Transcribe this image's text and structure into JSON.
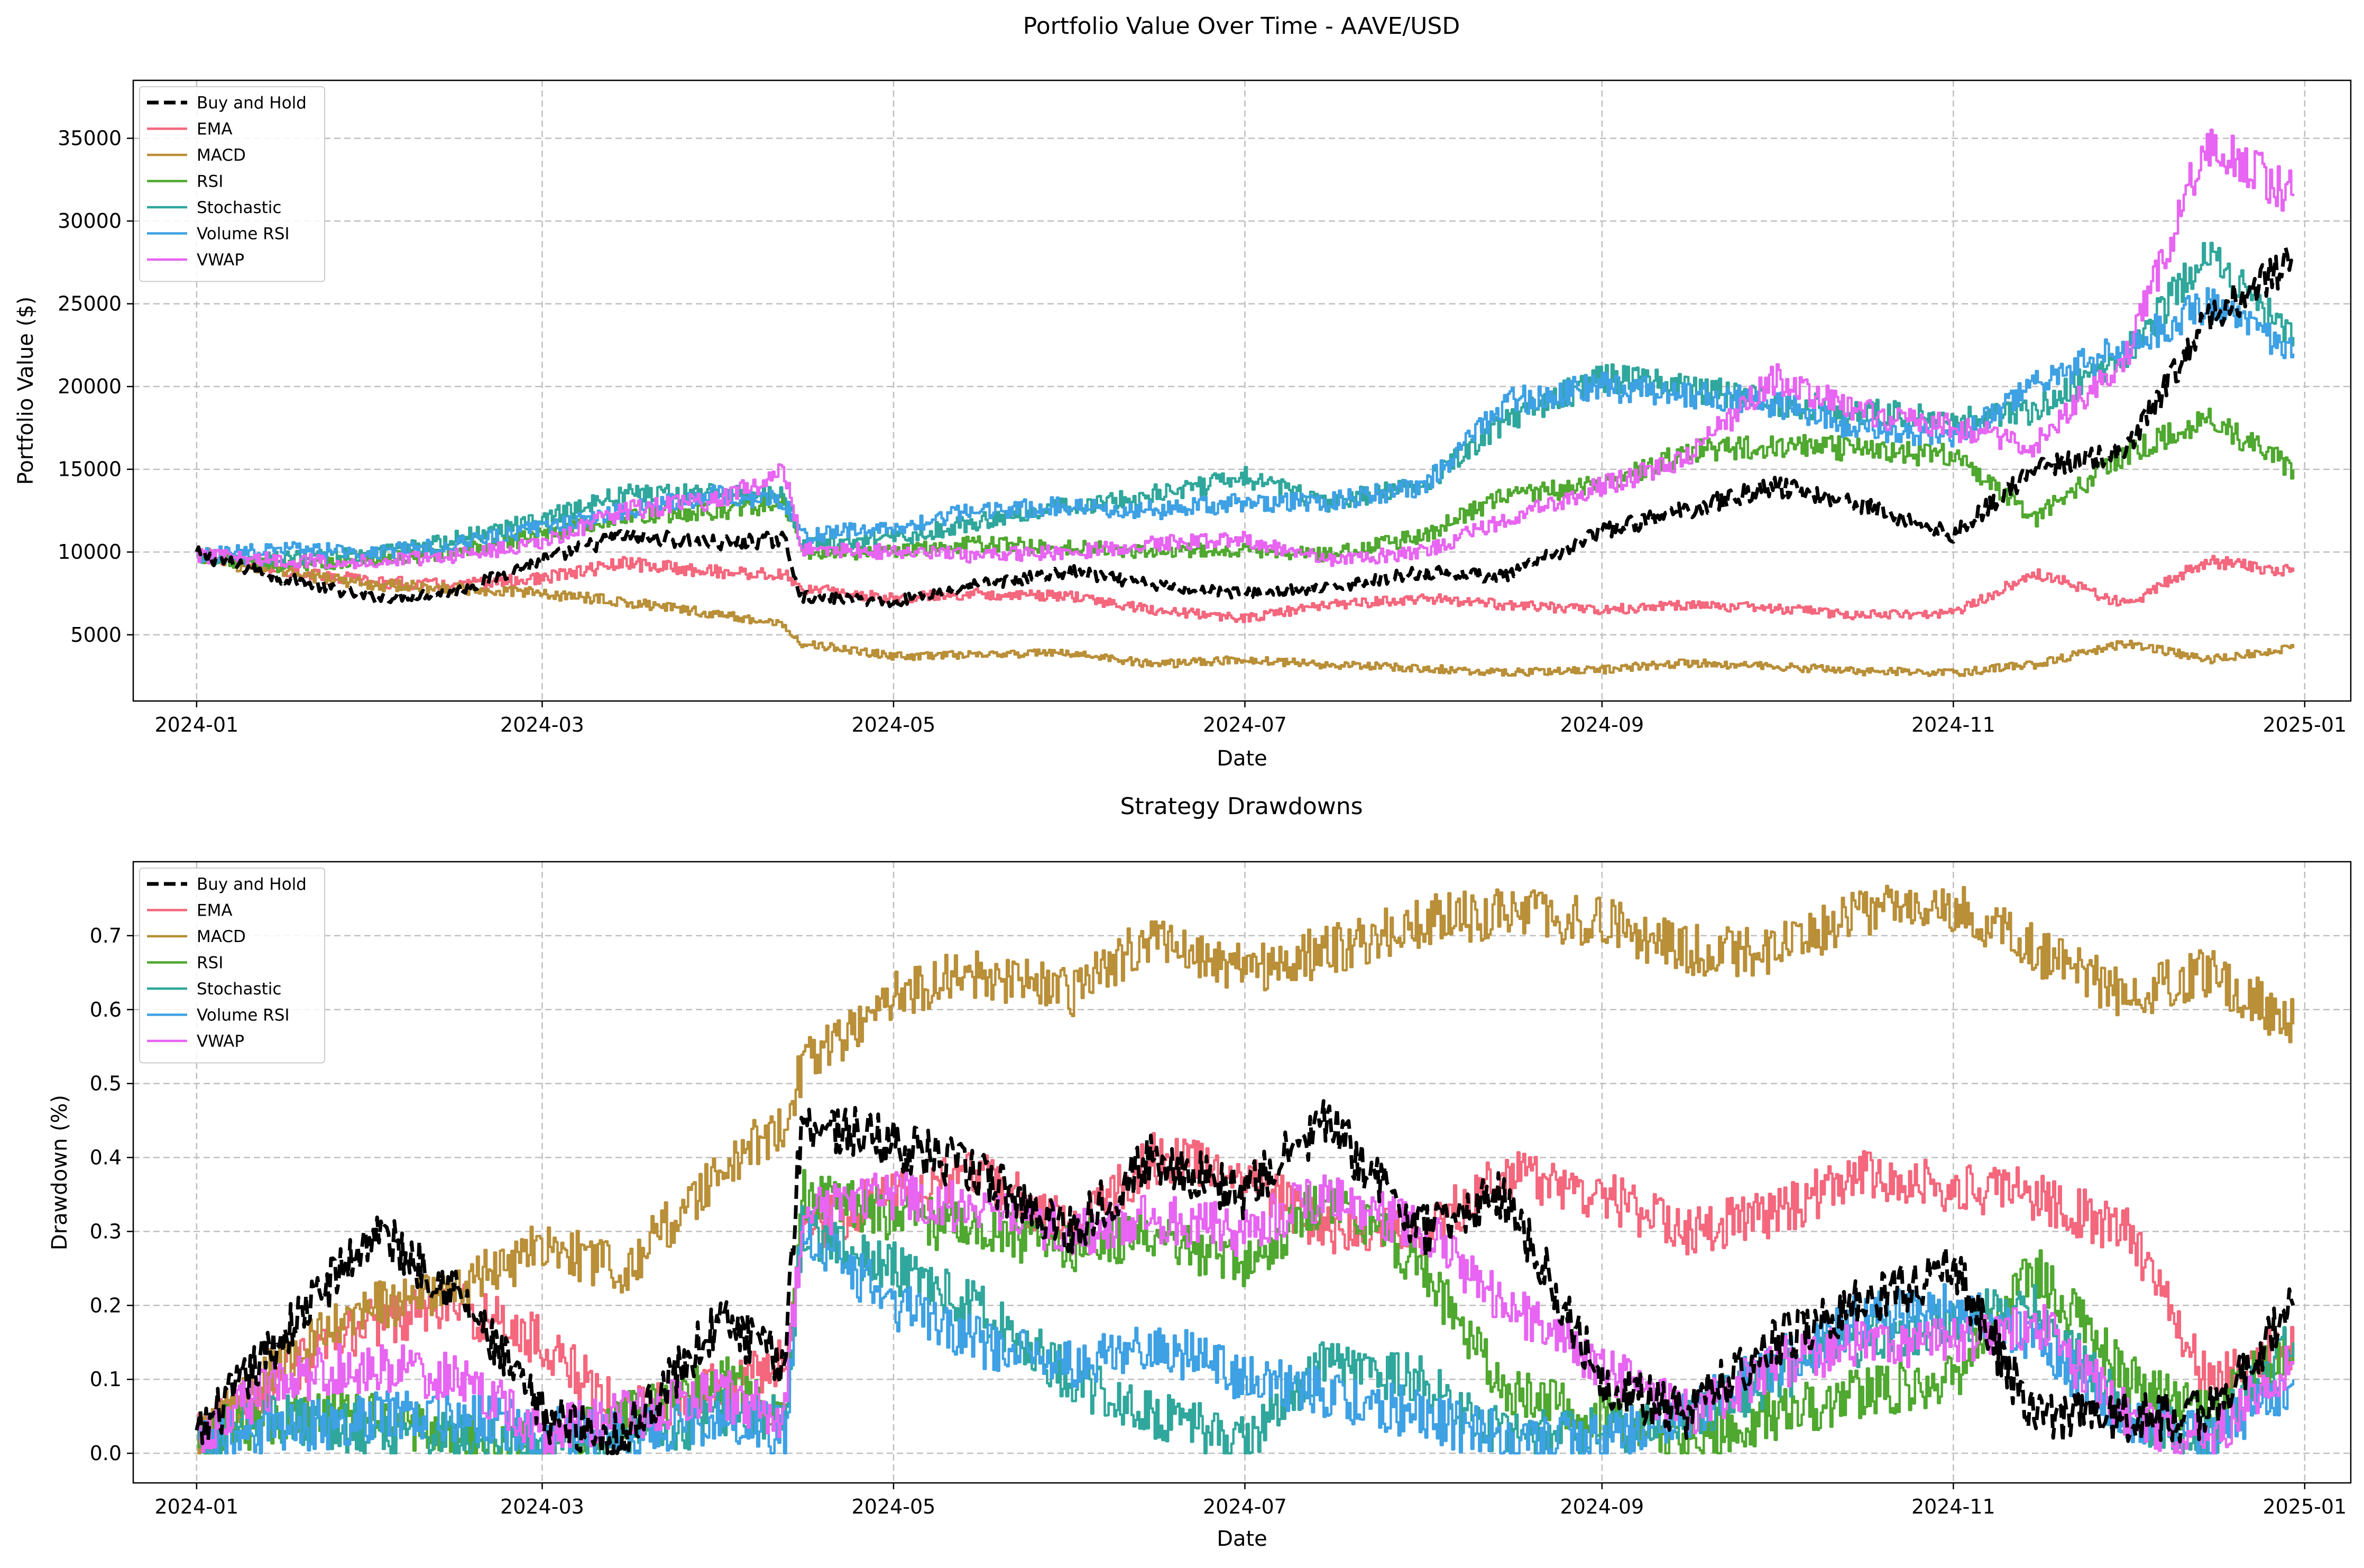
{
  "figure": {
    "colors": {
      "Buy and Hold": "#000000",
      "EMA": "#f4677d",
      "MACD": "#b98f38",
      "RSI": "#4fa82f",
      "Stochastic": "#30a79c",
      "Volume RSI": "#3ea1e4",
      "VWAP": "#e765f2"
    },
    "grid_color": "#bfbfbf"
  },
  "chart_data": [
    {
      "type": "line",
      "title": "Portfolio Value Over Time - AAVE/USD",
      "xlabel": "Date",
      "ylabel": "Portfolio Value ($)",
      "xlim": [
        "2023-12-21",
        "2025-01-09"
      ],
      "ylim": [
        1000,
        38500
      ],
      "x_ticks": [
        "2024-01",
        "2024-03",
        "2024-05",
        "2024-07",
        "2024-09",
        "2024-11",
        "2025-01"
      ],
      "y_ticks": [
        5000,
        10000,
        15000,
        20000,
        25000,
        30000,
        35000
      ],
      "grid": true,
      "legend_position": "upper-left",
      "x": [
        "2024-01-01",
        "2024-01-15",
        "2024-02-01",
        "2024-02-15",
        "2024-03-01",
        "2024-03-15",
        "2024-04-01",
        "2024-04-12",
        "2024-04-15",
        "2024-05-01",
        "2024-05-15",
        "2024-06-01",
        "2024-06-15",
        "2024-07-01",
        "2024-07-15",
        "2024-08-01",
        "2024-08-15",
        "2024-09-01",
        "2024-09-15",
        "2024-10-01",
        "2024-10-15",
        "2024-11-01",
        "2024-11-15",
        "2024-12-01",
        "2024-12-15",
        "2024-12-30"
      ],
      "series": [
        {
          "name": "Buy and Hold",
          "dashed": true,
          "values": [
            9900,
            8500,
            7200,
            7600,
            9500,
            11000,
            10500,
            10800,
            7300,
            7000,
            8000,
            8800,
            8000,
            7500,
            7800,
            8800,
            8500,
            11200,
            12500,
            14000,
            13000,
            11000,
            15000,
            16000,
            24000,
            27500
          ]
        },
        {
          "name": "EMA",
          "values": [
            9900,
            9000,
            8200,
            8000,
            8400,
            9300,
            8800,
            8600,
            7800,
            7200,
            7500,
            7300,
            6500,
            6000,
            6800,
            7200,
            6800,
            6500,
            6800,
            6600,
            6200,
            6300,
            8800,
            6800,
            9500,
            8800
          ]
        },
        {
          "name": "MACD",
          "values": [
            9700,
            8800,
            8000,
            7800,
            7500,
            7000,
            6200,
            5600,
            4500,
            3700,
            3800,
            3900,
            3200,
            3500,
            3200,
            3000,
            2700,
            2900,
            3300,
            3100,
            2800,
            2700,
            3200,
            4500,
            3500,
            4200
          ]
        },
        {
          "name": "RSI",
          "values": [
            9700,
            9200,
            9500,
            10000,
            11000,
            12200,
            12500,
            13000,
            10000,
            10000,
            10500,
            10300,
            10000,
            10200,
            9800,
            11000,
            13500,
            14000,
            16000,
            16500,
            16200,
            15800,
            12000,
            16000,
            18000,
            15000
          ]
        },
        {
          "name": "Stochastic",
          "values": [
            9700,
            9600,
            9900,
            10800,
            12000,
            13500,
            13500,
            13500,
            10500,
            10800,
            11800,
            12800,
            13500,
            14500,
            13000,
            14000,
            18000,
            20500,
            20000,
            19000,
            18500,
            18000,
            18500,
            22000,
            28000,
            23000
          ]
        },
        {
          "name": "Volume RSI",
          "values": [
            9800,
            10200,
            10000,
            10500,
            11500,
            12500,
            13500,
            13000,
            11000,
            11500,
            12500,
            12800,
            12500,
            13000,
            13000,
            14000,
            19000,
            20000,
            19500,
            19000,
            17500,
            17000,
            20000,
            22500,
            25000,
            22000
          ]
        },
        {
          "name": "VWAP",
          "values": [
            9800,
            9500,
            9400,
            9800,
            10500,
            12500,
            13200,
            14800,
            10200,
            10000,
            9800,
            10000,
            10500,
            10800,
            9500,
            10000,
            12000,
            14000,
            15500,
            20500,
            18500,
            17500,
            16500,
            22000,
            35000,
            31500
          ]
        }
      ]
    },
    {
      "type": "line",
      "title": "Strategy Drawdowns",
      "xlabel": "Date",
      "ylabel": "Drawdown (%)",
      "xlim": [
        "2023-12-21",
        "2025-01-09"
      ],
      "ylim": [
        -0.04,
        0.8
      ],
      "x_ticks": [
        "2024-01",
        "2024-03",
        "2024-05",
        "2024-07",
        "2024-09",
        "2024-11",
        "2025-01"
      ],
      "y_ticks": [
        0.0,
        0.1,
        0.2,
        0.3,
        0.4,
        0.5,
        0.6,
        0.7
      ],
      "grid": true,
      "legend_position": "upper-left",
      "x": [
        "2024-01-01",
        "2024-01-15",
        "2024-02-01",
        "2024-02-15",
        "2024-03-01",
        "2024-03-15",
        "2024-04-01",
        "2024-04-12",
        "2024-04-15",
        "2024-05-01",
        "2024-05-15",
        "2024-06-01",
        "2024-06-15",
        "2024-07-01",
        "2024-07-15",
        "2024-08-01",
        "2024-08-15",
        "2024-09-01",
        "2024-09-15",
        "2024-10-01",
        "2024-10-15",
        "2024-11-01",
        "2024-11-15",
        "2024-12-01",
        "2024-12-15",
        "2024-12-30"
      ],
      "series": [
        {
          "name": "Buy and Hold",
          "dashed": true,
          "values": [
            0.02,
            0.15,
            0.3,
            0.22,
            0.05,
            0.02,
            0.18,
            0.12,
            0.45,
            0.42,
            0.38,
            0.3,
            0.4,
            0.35,
            0.45,
            0.3,
            0.35,
            0.1,
            0.05,
            0.15,
            0.2,
            0.25,
            0.05,
            0.05,
            0.05,
            0.2
          ]
        },
        {
          "name": "EMA",
          "values": [
            0.02,
            0.1,
            0.18,
            0.2,
            0.15,
            0.05,
            0.1,
            0.12,
            0.3,
            0.35,
            0.38,
            0.3,
            0.4,
            0.38,
            0.3,
            0.3,
            0.38,
            0.35,
            0.3,
            0.32,
            0.38,
            0.36,
            0.35,
            0.3,
            0.1,
            0.15
          ]
        },
        {
          "name": "MACD",
          "values": [
            0.02,
            0.12,
            0.2,
            0.22,
            0.28,
            0.25,
            0.38,
            0.45,
            0.52,
            0.62,
            0.65,
            0.62,
            0.7,
            0.65,
            0.68,
            0.72,
            0.73,
            0.72,
            0.68,
            0.68,
            0.73,
            0.74,
            0.68,
            0.62,
            0.65,
            0.58
          ]
        },
        {
          "name": "RSI",
          "values": [
            0.02,
            0.05,
            0.05,
            0.02,
            0.01,
            0.05,
            0.1,
            0.05,
            0.35,
            0.32,
            0.3,
            0.28,
            0.3,
            0.25,
            0.35,
            0.25,
            0.08,
            0.05,
            0.02,
            0.05,
            0.08,
            0.1,
            0.25,
            0.1,
            0.05,
            0.15
          ]
        },
        {
          "name": "Stochastic",
          "values": [
            0.02,
            0.05,
            0.03,
            0.02,
            0.01,
            0.02,
            0.05,
            0.05,
            0.3,
            0.25,
            0.2,
            0.1,
            0.05,
            0.02,
            0.12,
            0.1,
            0.02,
            0.03,
            0.05,
            0.1,
            0.15,
            0.18,
            0.2,
            0.05,
            0.02,
            0.15
          ]
        },
        {
          "name": "Volume RSI",
          "values": [
            0.02,
            0.03,
            0.05,
            0.05,
            0.03,
            0.02,
            0.05,
            0.03,
            0.3,
            0.2,
            0.15,
            0.12,
            0.15,
            0.1,
            0.08,
            0.05,
            0.02,
            0.02,
            0.05,
            0.12,
            0.18,
            0.2,
            0.15,
            0.05,
            0.02,
            0.1
          ]
        },
        {
          "name": "VWAP",
          "values": [
            0.02,
            0.1,
            0.12,
            0.1,
            0.03,
            0.05,
            0.08,
            0.05,
            0.32,
            0.35,
            0.33,
            0.3,
            0.32,
            0.3,
            0.35,
            0.3,
            0.2,
            0.12,
            0.05,
            0.12,
            0.15,
            0.15,
            0.18,
            0.05,
            0.02,
            0.12
          ]
        }
      ]
    }
  ]
}
